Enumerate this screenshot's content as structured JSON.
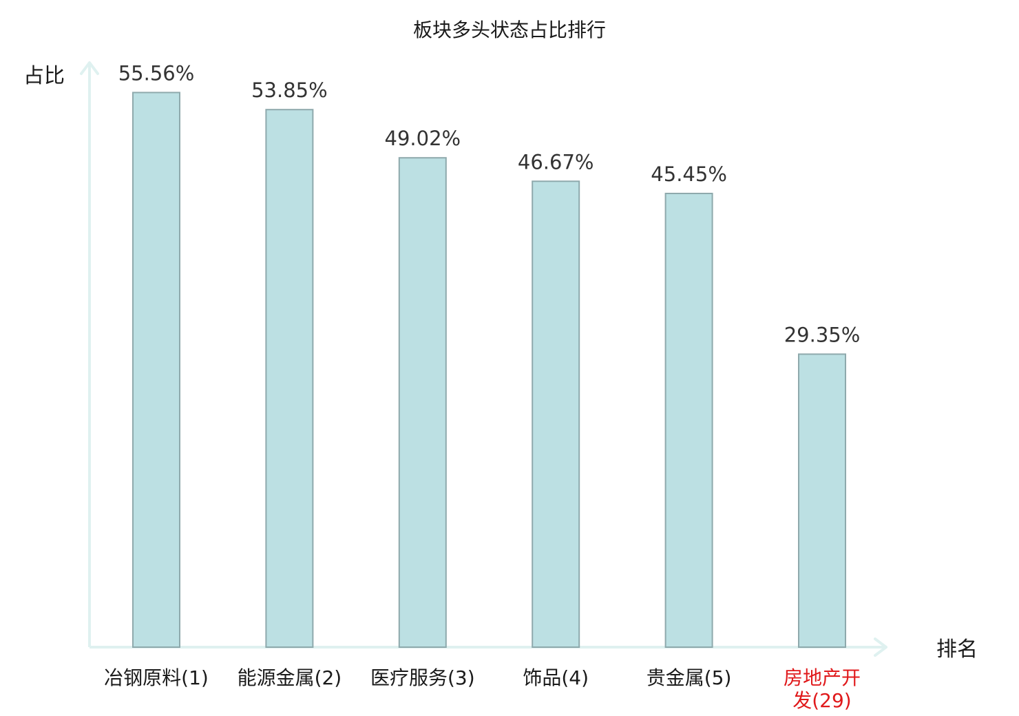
{
  "chart_data": {
    "type": "bar",
    "title": "板块多头状态占比排行",
    "ylabel": "占比",
    "xlabel": "排名",
    "ylim": [
      0,
      60
    ],
    "grid": false,
    "legend": "none",
    "categories": [
      {
        "lines": [
          "冶钢原料(1)"
        ],
        "highlight": false
      },
      {
        "lines": [
          "能源金属(2)"
        ],
        "highlight": false
      },
      {
        "lines": [
          "医疗服务(3)"
        ],
        "highlight": false
      },
      {
        "lines": [
          "饰品(4)"
        ],
        "highlight": false
      },
      {
        "lines": [
          "贵金属(5)"
        ],
        "highlight": false
      },
      {
        "lines": [
          "房地产开",
          "发(29)"
        ],
        "highlight": true
      }
    ],
    "values": [
      55.56,
      53.85,
      49.02,
      46.67,
      45.45,
      29.35
    ],
    "value_labels": [
      "55.56%",
      "53.85%",
      "49.02%",
      "46.67%",
      "45.45%",
      "29.35%"
    ],
    "colors": {
      "bar_fill": "#bce0e3",
      "bar_stroke": "#8ea9ac",
      "axis": "#dff1f0",
      "label_text": "#1a1a1a",
      "highlight_text": "#e0191b"
    }
  }
}
